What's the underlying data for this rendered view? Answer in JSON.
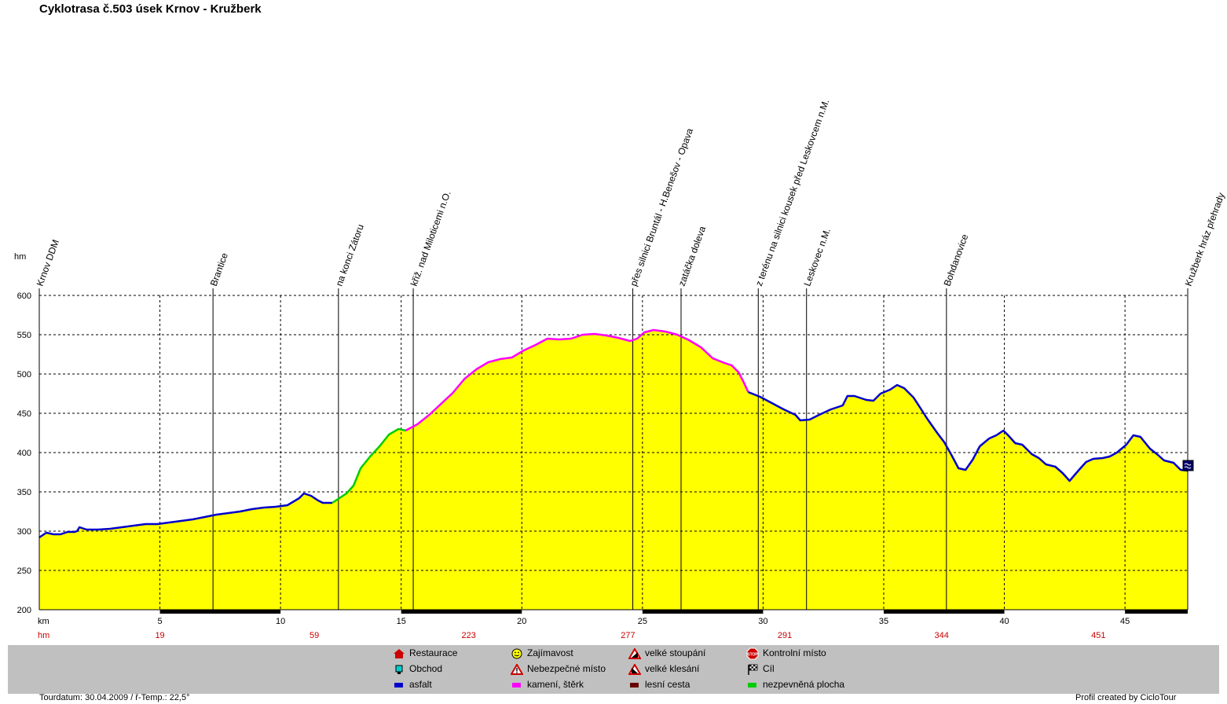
{
  "title": "Cyklotrasa č.503 úsek Krnov - Kružberk",
  "chart_data": {
    "type": "area",
    "title": "Cyklotrasa č.503 úsek Krnov - Kružberk",
    "ylabel": "hm",
    "xlabel": "km",
    "xlim": [
      0,
      47.6
    ],
    "ylim": [
      200,
      600
    ],
    "yticks": [
      200,
      250,
      300,
      350,
      400,
      450,
      500,
      550,
      600
    ],
    "xticks": [
      5,
      10,
      15,
      20,
      25,
      30,
      35,
      40,
      45
    ],
    "grid": true,
    "fill_color": "#ffff00",
    "profile": [
      [
        0,
        292
      ],
      [
        0.3,
        298
      ],
      [
        0.6,
        296
      ],
      [
        0.9,
        296
      ],
      [
        1.2,
        299
      ],
      [
        1.5,
        299
      ],
      [
        1.6,
        300
      ],
      [
        1.7,
        305
      ],
      [
        2,
        302
      ],
      [
        2.5,
        302
      ],
      [
        3,
        303
      ],
      [
        3.5,
        305
      ],
      [
        4,
        307
      ],
      [
        4.5,
        309
      ],
      [
        5,
        309
      ],
      [
        5.5,
        311
      ],
      [
        6,
        313
      ],
      [
        6.5,
        315
      ],
      [
        7,
        318
      ],
      [
        7.5,
        321
      ],
      [
        8,
        323
      ],
      [
        8.5,
        325
      ],
      [
        9,
        328
      ],
      [
        9.5,
        330
      ],
      [
        10,
        331
      ],
      [
        10.5,
        333
      ],
      [
        11,
        342
      ],
      [
        11.2,
        348
      ],
      [
        11.5,
        345
      ],
      [
        11.8,
        339
      ],
      [
        12,
        336
      ],
      [
        12.4,
        336
      ],
      [
        12.6,
        340
      ],
      [
        13,
        348
      ],
      [
        13.3,
        358
      ],
      [
        13.6,
        380
      ],
      [
        14,
        395
      ],
      [
        14.4,
        408
      ],
      [
        14.8,
        423
      ],
      [
        15.2,
        430
      ],
      [
        15.5,
        428
      ],
      [
        16,
        436
      ],
      [
        16.5,
        448
      ],
      [
        17,
        462
      ],
      [
        17.5,
        476
      ],
      [
        18,
        494
      ],
      [
        18.5,
        506
      ],
      [
        19,
        515
      ],
      [
        19.5,
        519
      ],
      [
        20,
        521
      ],
      [
        20.5,
        530
      ],
      [
        21,
        537
      ],
      [
        21.5,
        545
      ],
      [
        22,
        544
      ],
      [
        22.5,
        545
      ],
      [
        23,
        550
      ],
      [
        23.5,
        551
      ],
      [
        24,
        549
      ],
      [
        24.5,
        546
      ],
      [
        25,
        542
      ],
      [
        25.3,
        545
      ],
      [
        25.6,
        553
      ],
      [
        26,
        556
      ],
      [
        26.5,
        554
      ],
      [
        27,
        550
      ],
      [
        27.5,
        543
      ],
      [
        28,
        534
      ],
      [
        28.5,
        520
      ],
      [
        29,
        514
      ],
      [
        29.3,
        511
      ],
      [
        29.6,
        502
      ],
      [
        29.8,
        490
      ],
      [
        30,
        477
      ],
      [
        30.5,
        471
      ],
      [
        31,
        463
      ],
      [
        31.5,
        455
      ],
      [
        32,
        448
      ],
      [
        32.2,
        441
      ],
      [
        32.6,
        442
      ],
      [
        33,
        448
      ],
      [
        33.5,
        455
      ],
      [
        34,
        460
      ],
      [
        34.2,
        472
      ],
      [
        34.5,
        472
      ],
      [
        35,
        467
      ],
      [
        35.3,
        466
      ],
      [
        35.6,
        475
      ],
      [
        36,
        480
      ],
      [
        36.3,
        486
      ],
      [
        36.6,
        482
      ],
      [
        37,
        470
      ],
      [
        37.3,
        456
      ],
      [
        37.6,
        442
      ],
      [
        38,
        425
      ],
      [
        38.3,
        413
      ],
      [
        38.6,
        397
      ],
      [
        38.9,
        380
      ],
      [
        39.2,
        378
      ],
      [
        39.5,
        391
      ],
      [
        39.8,
        408
      ],
      [
        40.2,
        418
      ],
      [
        40.5,
        422
      ],
      [
        40.8,
        428
      ],
      [
        41,
        422
      ],
      [
        41.3,
        412
      ],
      [
        41.6,
        410
      ],
      [
        42,
        398
      ],
      [
        42.3,
        393
      ],
      [
        42.6,
        385
      ],
      [
        43,
        382
      ],
      [
        43.3,
        374
      ],
      [
        43.6,
        364
      ],
      [
        44,
        378
      ],
      [
        44.3,
        388
      ],
      [
        44.6,
        392
      ],
      [
        45,
        393
      ],
      [
        45.3,
        395
      ],
      [
        45.6,
        400
      ],
      [
        46,
        410
      ],
      [
        46.3,
        422
      ],
      [
        46.6,
        420
      ],
      [
        47,
        405
      ],
      [
        47.3,
        398
      ],
      [
        47.6,
        390
      ],
      [
        48,
        387
      ],
      [
        48.3,
        378
      ],
      [
        48.6,
        377
      ]
    ],
    "x_scale_km": [
      0,
      47.6
    ],
    "surface_segments": [
      {
        "from": 0,
        "to": 12.4,
        "surface": "asfalt",
        "color": "#0000cc"
      },
      {
        "from": 12.4,
        "to": 15.5,
        "surface": "nezpevněná plocha",
        "color": "#00cc00"
      },
      {
        "from": 15.5,
        "to": 30,
        "surface": "kamení, štěrk",
        "color": "#ff00ff"
      },
      {
        "from": 30,
        "to": 48.6,
        "surface": "asfalt",
        "color": "#0000cc"
      }
    ],
    "waypoints": [
      {
        "km": 0,
        "label": "Krnov DDM"
      },
      {
        "km": 7.2,
        "label": "Brantice"
      },
      {
        "km": 12.4,
        "label": "na konci Zátoru"
      },
      {
        "km": 15.5,
        "label": "křiž. nad Miloticemi n.O."
      },
      {
        "km": 24.6,
        "label": "přes silnici Bruntál - H.Benešov - Opava"
      },
      {
        "km": 26.6,
        "label": "zatáčka doleva"
      },
      {
        "km": 29.8,
        "label": "z terénu na silnici kousek před Leskovcem n.M."
      },
      {
        "km": 31.8,
        "label": "Leskovec n.M."
      },
      {
        "km": 37.6,
        "label": "Bohdanovice"
      },
      {
        "km": 47.6,
        "label": "Kružberk hráz přehrady"
      }
    ],
    "hm_row_label": "hm",
    "km_row_label": "km",
    "cumulative_climb": [
      {
        "km": 5,
        "value": "19"
      },
      {
        "km": 11.4,
        "value": "59"
      },
      {
        "km": 17.8,
        "value": "223"
      },
      {
        "km": 24.4,
        "value": "277"
      },
      {
        "km": 30.9,
        "value": "291"
      },
      {
        "km": 37.4,
        "value": "344"
      },
      {
        "km": 43.9,
        "value": "451"
      }
    ]
  },
  "legend": {
    "items": [
      {
        "icon": "restaurant-icon",
        "label": "Restaurace"
      },
      {
        "icon": "shop-icon",
        "label": "Obchod"
      },
      {
        "icon": "asfalt-swatch",
        "label": "asfalt",
        "color": "#0000cc"
      },
      {
        "icon": "smiley-icon",
        "label": "Zajímavost"
      },
      {
        "icon": "warning-icon",
        "label": "Nebezpečné místo"
      },
      {
        "icon": "gravel-swatch",
        "label": "kamení, štěrk",
        "color": "#ff00ff"
      },
      {
        "icon": "steep-climb-icon",
        "label": "velké stoupání"
      },
      {
        "icon": "steep-descent-icon",
        "label": "velké klesání"
      },
      {
        "icon": "forest-path-swatch",
        "label": "lesní cesta",
        "color": "#660000"
      },
      {
        "icon": "stop-icon",
        "label": "Kontrolní místo"
      },
      {
        "icon": "finish-flag-icon",
        "label": "Cíl"
      },
      {
        "icon": "unpaved-swatch",
        "label": "nezpevněná plocha",
        "color": "#00cc00"
      }
    ]
  },
  "footer": {
    "left": "Tourdatum: 30.04.2009  /  ř-Temp.: 22,5°",
    "right": "Profil created by CicloTour"
  }
}
